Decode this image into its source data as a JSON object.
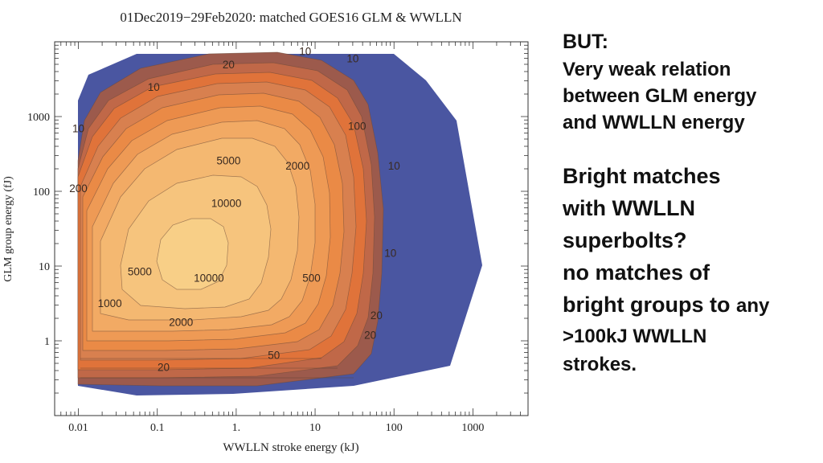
{
  "chart_data": {
    "type": "contour",
    "title": "01Dec2019−29Feb2020: matched GOES16 GLM & WWLLN",
    "xlabel": "WWLLN stroke energy (kJ)",
    "ylabel": "GLM group energy (fJ)",
    "xscale": "log",
    "yscale": "log",
    "xlim": [
      0.005,
      5000
    ],
    "ylim": [
      0.1,
      10000
    ],
    "x_ticks": [
      "0.01",
      "0.1",
      "1.",
      "10",
      "100",
      "1000"
    ],
    "y_ticks": [
      "1",
      "10",
      "100",
      "1000"
    ],
    "levels": [
      10,
      20,
      50,
      100,
      200,
      500,
      1000,
      2000,
      5000,
      10000
    ],
    "contour_labels": [
      {
        "text": "10",
        "x": 7.5,
        "y": 7500
      },
      {
        "text": "10",
        "x": 30,
        "y": 6000
      },
      {
        "text": "20",
        "x": 0.8,
        "y": 5000
      },
      {
        "text": "10",
        "x": 0.09,
        "y": 2500
      },
      {
        "text": "10",
        "x": 0.01,
        "y": 700
      },
      {
        "text": "100",
        "x": 34,
        "y": 750
      },
      {
        "text": "5000",
        "x": 0.8,
        "y": 260
      },
      {
        "text": "2000",
        "x": 6,
        "y": 220
      },
      {
        "text": "10",
        "x": 100,
        "y": 220
      },
      {
        "text": "200",
        "x": 0.01,
        "y": 110
      },
      {
        "text": "10000",
        "x": 0.75,
        "y": 70
      },
      {
        "text": "10",
        "x": 90,
        "y": 15
      },
      {
        "text": "5000",
        "x": 0.06,
        "y": 8.5
      },
      {
        "text": "10000",
        "x": 0.45,
        "y": 7
      },
      {
        "text": "500",
        "x": 9,
        "y": 7
      },
      {
        "text": "20",
        "x": 60,
        "y": 2.2
      },
      {
        "text": "1000",
        "x": 0.025,
        "y": 3.2
      },
      {
        "text": "2000",
        "x": 0.2,
        "y": 1.8
      },
      {
        "text": "20",
        "x": 50,
        "y": 1.2
      },
      {
        "text": "50",
        "x": 3,
        "y": 0.65
      },
      {
        "text": "20",
        "x": 0.12,
        "y": 0.45
      }
    ],
    "colors": {
      "outer": "#4a56a1",
      "level_10": "#9c5a4c",
      "level_20": "#c06848",
      "level_50": "#e0733a",
      "level_100": "#d8804f",
      "level_200": "#ea8a46",
      "level_500": "#ee9a55",
      "level_1000": "#f2aa64",
      "level_2000": "#f4b871",
      "level_5000": "#f6c47d",
      "level_10000": "#f8cf87"
    }
  },
  "side_text": {
    "line1": "BUT:",
    "para1": [
      "Very weak relation",
      "between GLM energy",
      "and WWLLN energy"
    ],
    "para2": [
      "Bright matches",
      "with WWLLN",
      "superbolts?",
      "no matches of"
    ],
    "para2_last_bold": "bright groups to",
    "para2_last_small": "any",
    "para3": [
      ">100kJ WWLLN",
      "strokes."
    ]
  }
}
